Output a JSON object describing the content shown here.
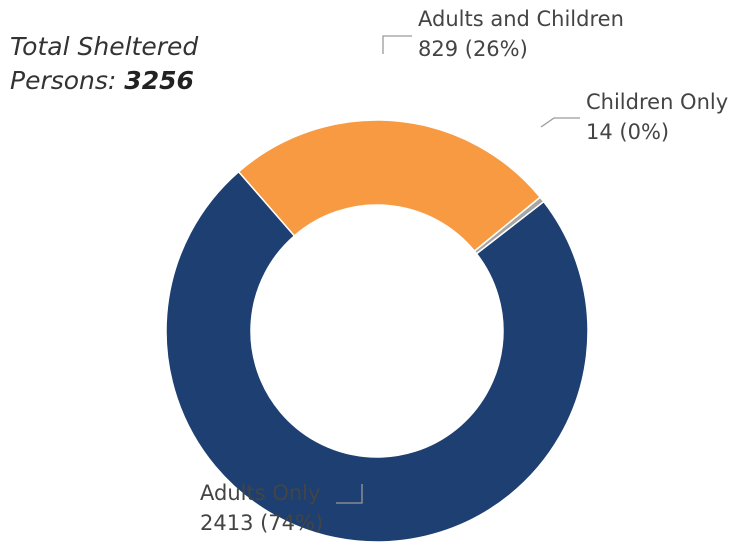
{
  "total": {
    "line1": "Total Sheltered",
    "line2_prefix": "Persons: ",
    "value": "3256"
  },
  "chart_data": {
    "type": "pie",
    "subtype": "donut",
    "categories": [
      "Adults and Children",
      "Children Only",
      "Adults Only"
    ],
    "values": [
      829,
      14,
      2413
    ],
    "percent_labels": [
      "26%",
      "0%",
      "74%"
    ],
    "colors": [
      "#F79A42",
      "#A6A6A6",
      "#1D3F71"
    ],
    "total": 3256
  }
}
